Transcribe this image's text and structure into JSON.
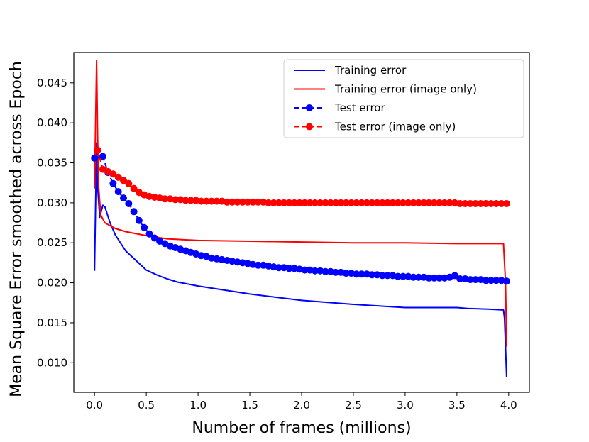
{
  "chart_data": {
    "type": "line",
    "xlabel": "Number of frames (millions)",
    "ylabel": "Mean Square Error smoothed across Epoch",
    "xlim": [
      -0.2,
      4.2
    ],
    "ylim": [
      0.0063,
      0.0488
    ],
    "x_ticks": [
      0.0,
      0.5,
      1.0,
      1.5,
      2.0,
      2.5,
      3.0,
      3.5,
      4.0
    ],
    "x_tick_labels": [
      "0.0",
      "0.5",
      "1.0",
      "1.5",
      "2.0",
      "2.5",
      "3.0",
      "3.5",
      "4.0"
    ],
    "y_ticks": [
      0.01,
      0.015,
      0.02,
      0.025,
      0.03,
      0.035,
      0.04,
      0.045
    ],
    "y_tick_labels": [
      "0.010",
      "0.015",
      "0.020",
      "0.025",
      "0.030",
      "0.035",
      "0.040",
      "0.045"
    ],
    "grid": false,
    "legend_position": "top-right",
    "series": [
      {
        "name": "Training error",
        "color": "#0000ff",
        "style": "solid",
        "marker": "none",
        "points": [
          [
            0.0,
            0.0215
          ],
          [
            0.02,
            0.0375
          ],
          [
            0.03,
            0.032
          ],
          [
            0.05,
            0.0282
          ],
          [
            0.08,
            0.0297
          ],
          [
            0.1,
            0.0295
          ],
          [
            0.15,
            0.0275
          ],
          [
            0.2,
            0.026
          ],
          [
            0.3,
            0.024
          ],
          [
            0.4,
            0.0228
          ],
          [
            0.5,
            0.0216
          ],
          [
            0.6,
            0.021
          ],
          [
            0.7,
            0.0205
          ],
          [
            0.8,
            0.0201
          ],
          [
            1.0,
            0.0196
          ],
          [
            1.5,
            0.0186
          ],
          [
            2.0,
            0.0178
          ],
          [
            2.5,
            0.0173
          ],
          [
            3.0,
            0.0169
          ],
          [
            3.5,
            0.0169
          ],
          [
            3.6,
            0.0168
          ],
          [
            3.8,
            0.0167
          ],
          [
            3.95,
            0.0166
          ],
          [
            3.96,
            0.0155
          ],
          [
            3.98,
            0.0082
          ]
        ]
      },
      {
        "name": "Training error (image only)",
        "color": "#ff0000",
        "style": "solid",
        "marker": "none",
        "points": [
          [
            0.0,
            0.0318
          ],
          [
            0.02,
            0.0478
          ],
          [
            0.03,
            0.038
          ],
          [
            0.04,
            0.032
          ],
          [
            0.06,
            0.0285
          ],
          [
            0.1,
            0.0275
          ],
          [
            0.2,
            0.0268
          ],
          [
            0.3,
            0.0264
          ],
          [
            0.5,
            0.0259
          ],
          [
            0.7,
            0.0255
          ],
          [
            1.0,
            0.0253
          ],
          [
            1.5,
            0.0252
          ],
          [
            2.0,
            0.0251
          ],
          [
            2.5,
            0.025
          ],
          [
            3.0,
            0.025
          ],
          [
            3.5,
            0.0249
          ],
          [
            3.95,
            0.0249
          ],
          [
            3.97,
            0.02
          ],
          [
            3.98,
            0.012
          ]
        ]
      },
      {
        "name": "Test error",
        "color": "#0000ff",
        "style": "dashed",
        "marker": "circle",
        "x": [
          0.0,
          0.08,
          0.13,
          0.18,
          0.23,
          0.28,
          0.33,
          0.38,
          0.43,
          0.48,
          0.53,
          0.58,
          0.63,
          0.68,
          0.73,
          0.78,
          0.83,
          0.88,
          0.93,
          0.98,
          1.03,
          1.08,
          1.13,
          1.18,
          1.23,
          1.28,
          1.33,
          1.38,
          1.43,
          1.48,
          1.53,
          1.58,
          1.63,
          1.68,
          1.73,
          1.78,
          1.83,
          1.88,
          1.93,
          1.98,
          2.03,
          2.08,
          2.13,
          2.18,
          2.23,
          2.28,
          2.33,
          2.38,
          2.43,
          2.48,
          2.53,
          2.58,
          2.63,
          2.68,
          2.73,
          2.78,
          2.83,
          2.88,
          2.93,
          2.98,
          3.03,
          3.08,
          3.13,
          3.18,
          3.23,
          3.28,
          3.33,
          3.38,
          3.43,
          3.48,
          3.53,
          3.58,
          3.63,
          3.68,
          3.73,
          3.78,
          3.83,
          3.88,
          3.93,
          3.98
        ],
        "values": [
          0.0356,
          0.0358,
          0.0338,
          0.0324,
          0.0314,
          0.0306,
          0.0299,
          0.0289,
          0.0278,
          0.0269,
          0.0261,
          0.0256,
          0.0252,
          0.0249,
          0.0246,
          0.0244,
          0.0242,
          0.024,
          0.0238,
          0.0236,
          0.0234,
          0.0233,
          0.0231,
          0.023,
          0.0229,
          0.0228,
          0.0227,
          0.0226,
          0.0225,
          0.0224,
          0.0223,
          0.0222,
          0.0222,
          0.0221,
          0.022,
          0.0219,
          0.0219,
          0.0218,
          0.0218,
          0.0217,
          0.0216,
          0.0216,
          0.0215,
          0.0215,
          0.0214,
          0.0214,
          0.0213,
          0.0213,
          0.0212,
          0.0212,
          0.0211,
          0.0211,
          0.0211,
          0.021,
          0.021,
          0.0209,
          0.0209,
          0.0209,
          0.0208,
          0.0208,
          0.0208,
          0.0207,
          0.0207,
          0.0207,
          0.0206,
          0.0206,
          0.0206,
          0.0206,
          0.0207,
          0.0209,
          0.0205,
          0.0205,
          0.0204,
          0.0204,
          0.0204,
          0.0203,
          0.0203,
          0.0203,
          0.0203,
          0.0202
        ]
      },
      {
        "name": "Test error (image only)",
        "color": "#ff0000",
        "style": "dashed",
        "marker": "circle",
        "x": [
          0.03,
          0.08,
          0.13,
          0.18,
          0.23,
          0.28,
          0.33,
          0.38,
          0.43,
          0.48,
          0.53,
          0.58,
          0.63,
          0.68,
          0.73,
          0.78,
          0.83,
          0.88,
          0.93,
          0.98,
          1.03,
          1.08,
          1.13,
          1.18,
          1.23,
          1.28,
          1.33,
          1.38,
          1.43,
          1.48,
          1.53,
          1.58,
          1.63,
          1.68,
          1.73,
          1.78,
          1.83,
          1.88,
          1.93,
          1.98,
          2.03,
          2.08,
          2.13,
          2.18,
          2.23,
          2.28,
          2.33,
          2.38,
          2.43,
          2.48,
          2.53,
          2.58,
          2.63,
          2.68,
          2.73,
          2.78,
          2.83,
          2.88,
          2.93,
          2.98,
          3.03,
          3.08,
          3.13,
          3.18,
          3.23,
          3.28,
          3.33,
          3.38,
          3.43,
          3.48,
          3.53,
          3.58,
          3.63,
          3.68,
          3.73,
          3.78,
          3.83,
          3.88,
          3.93,
          3.98
        ],
        "values": [
          0.0366,
          0.0342,
          0.0339,
          0.0336,
          0.0332,
          0.0328,
          0.0324,
          0.0318,
          0.0313,
          0.031,
          0.0308,
          0.0307,
          0.0306,
          0.0305,
          0.0305,
          0.0304,
          0.0304,
          0.0303,
          0.0303,
          0.0303,
          0.0302,
          0.0302,
          0.0302,
          0.0302,
          0.0302,
          0.0301,
          0.0301,
          0.0301,
          0.0301,
          0.0301,
          0.0301,
          0.0301,
          0.0301,
          0.03,
          0.03,
          0.03,
          0.03,
          0.03,
          0.03,
          0.03,
          0.03,
          0.03,
          0.03,
          0.03,
          0.03,
          0.03,
          0.03,
          0.03,
          0.03,
          0.03,
          0.03,
          0.03,
          0.03,
          0.03,
          0.03,
          0.03,
          0.03,
          0.03,
          0.03,
          0.03,
          0.03,
          0.03,
          0.03,
          0.03,
          0.03,
          0.03,
          0.03,
          0.03,
          0.03,
          0.03,
          0.0299,
          0.0299,
          0.0299,
          0.0299,
          0.0299,
          0.0299,
          0.0299,
          0.0299,
          0.0299,
          0.0299
        ]
      }
    ]
  }
}
